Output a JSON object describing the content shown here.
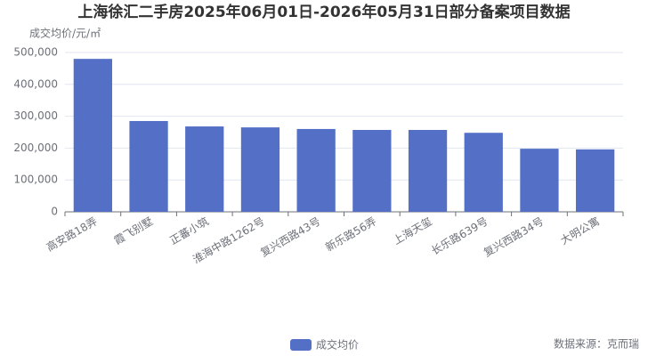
{
  "chart_data": {
    "type": "bar",
    "title": "上海徐汇二手房2025年06月01日-2026年05月31日部分备案项目数据",
    "y_axis_label": "成交均价/元/㎡",
    "categories": [
      "高安路18弄",
      "霞飞别墅",
      "正蕃小筑",
      "淮海中路1262号",
      "复兴西路43号",
      "新乐路56弄",
      "上海天玺",
      "长乐路639号",
      "复兴西路34号",
      "大明公寓"
    ],
    "series": [
      {
        "name": "成交均价",
        "color": "#5470c6",
        "values": [
          480000,
          285000,
          268000,
          265000,
          260000,
          257000,
          257000,
          248000,
          198000,
          196000
        ]
      }
    ],
    "ylim": [
      0,
      500000
    ],
    "yticks": [
      0,
      {
        "value": 100000,
        "label": "100,000"
      },
      {
        "value": 200000,
        "label": "200,000"
      },
      {
        "value": 300000,
        "label": "300,000"
      },
      {
        "value": 400000,
        "label": "400,000"
      },
      {
        "value": 500000,
        "label": "500,000"
      }
    ],
    "grid": true,
    "legend": "bottom",
    "source": "数据来源：克而瑞"
  }
}
